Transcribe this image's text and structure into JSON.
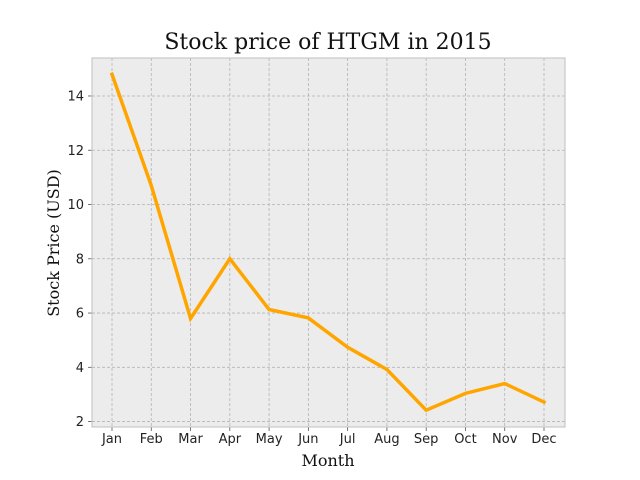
{
  "chart_data": {
    "type": "line",
    "title": "Stock price of HTGM in 2015",
    "xlabel": "Month",
    "ylabel": "Stock Price (USD)",
    "categories": [
      "Jan",
      "Feb",
      "Mar",
      "Apr",
      "May",
      "Jun",
      "Jul",
      "Aug",
      "Sep",
      "Oct",
      "Nov",
      "Dec"
    ],
    "series": [
      {
        "values": [
          14.8,
          10.7,
          5.8,
          8.0,
          6.13,
          5.82,
          4.74,
          3.92,
          2.42,
          3.04,
          3.4,
          2.72
        ],
        "color": "#ffa500"
      }
    ],
    "ylim": [
      1.8,
      15.4
    ],
    "yticks": [
      2,
      4,
      6,
      8,
      10,
      12,
      14
    ],
    "grid": true,
    "legend": "none",
    "plot_background": "#ececec",
    "grid_color": "#b3b3b3",
    "frame_color": "#bfbfbf"
  }
}
